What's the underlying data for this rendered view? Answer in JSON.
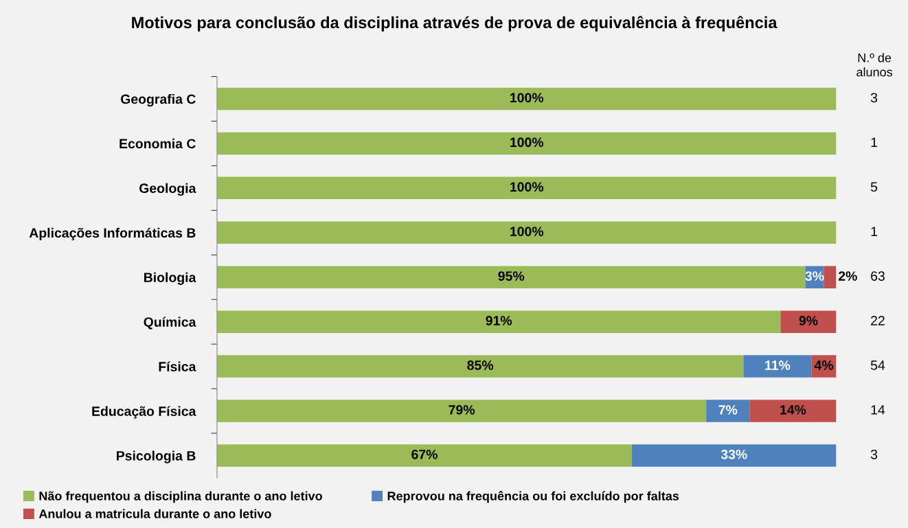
{
  "chart_data": {
    "type": "bar",
    "orientation": "horizontal",
    "stacked": true,
    "title": "Motivos para conclusão da disciplina através de prova de equivalência à frequência",
    "categories": [
      "Geografia C",
      "Economia C",
      "Geologia",
      "Aplicações Informáticas B",
      "Biologia",
      "Química",
      "Física",
      "Educação Física",
      "Psicologia B"
    ],
    "series": [
      {
        "name": "Não frequentou a disciplina durante o ano letivo",
        "color": "#9bbb59",
        "values": [
          100,
          100,
          100,
          100,
          95,
          91,
          85,
          79,
          67
        ],
        "value_labels": [
          "100%",
          "100%",
          "100%",
          "100%",
          "95%",
          "91%",
          "85%",
          "79%",
          "67%"
        ]
      },
      {
        "name": "Reprovou na frequência ou foi excluído por faltas",
        "color": "#4f81bd",
        "values": [
          0,
          0,
          0,
          0,
          3,
          0,
          11,
          7,
          33
        ],
        "value_labels": [
          null,
          null,
          null,
          null,
          "3%",
          null,
          "11%",
          "7%",
          "33%"
        ]
      },
      {
        "name": "Anulou a matricula durante o ano letivo",
        "color": "#c0504d",
        "values": [
          0,
          0,
          0,
          0,
          2,
          9,
          4,
          14,
          0
        ],
        "value_labels": [
          null,
          null,
          null,
          null,
          "2%",
          "9%",
          "4%",
          "14%",
          null
        ]
      }
    ],
    "xlim": [
      0,
      100
    ],
    "tick_labels": "y",
    "grid": false,
    "legend": "bottom",
    "annotations": [
      "N.º de\nalunos",
      "3",
      "1",
      "5",
      "1",
      "63",
      "22",
      "54",
      "14",
      "3"
    ]
  }
}
